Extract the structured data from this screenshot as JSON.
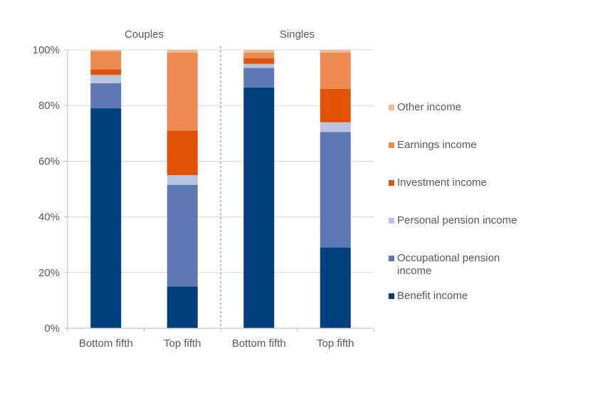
{
  "chart_data": {
    "type": "bar",
    "stacked": true,
    "orientation": "vertical",
    "groups": [
      "Couples",
      "Singles"
    ],
    "categories": [
      "Bottom fifth",
      "Top fifth",
      "Bottom fifth",
      "Top fifth"
    ],
    "category_group": [
      0,
      0,
      1,
      1
    ],
    "series": [
      {
        "name": "Benefit income",
        "color": "#003f7d",
        "values": [
          79,
          15,
          86.5,
          29
        ]
      },
      {
        "name": "Occupational pension income",
        "color": "#5e78b5",
        "values": [
          9,
          36.5,
          7,
          41.5
        ]
      },
      {
        "name": "Personal pension income",
        "color": "#b8c4dc",
        "values": [
          3,
          3.5,
          1.5,
          3.5
        ]
      },
      {
        "name": "Investment income",
        "color": "#e05206",
        "values": [
          2,
          16,
          2,
          12
        ]
      },
      {
        "name": "Earnings income",
        "color": "#ed8b52",
        "values": [
          6.5,
          28,
          2,
          13
        ]
      },
      {
        "name": "Other income",
        "color": "#f4b996",
        "values": [
          0.5,
          1,
          1,
          1
        ]
      }
    ],
    "ylim": [
      0,
      100
    ],
    "yticks": [
      "0%",
      "20%",
      "40%",
      "60%",
      "80%",
      "100%"
    ],
    "ytick_values": [
      0,
      20,
      40,
      60,
      80,
      100
    ],
    "gridlines": true,
    "legend_position": "right",
    "group_separator": "dashed"
  },
  "legend_order": [
    5,
    4,
    3,
    2,
    1,
    0
  ]
}
